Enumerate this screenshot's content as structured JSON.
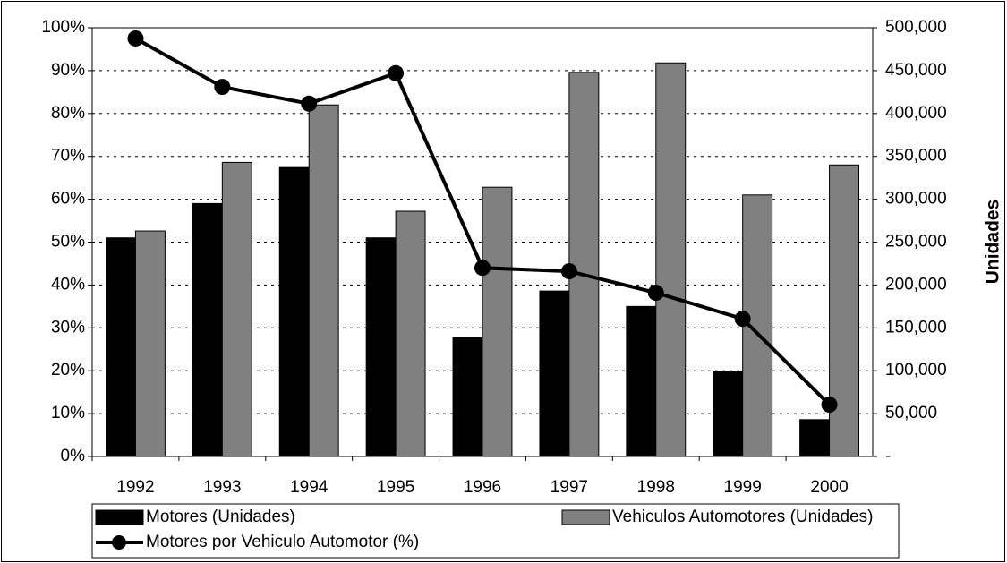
{
  "chart_data": {
    "type": "bar",
    "categories": [
      "1992",
      "1993",
      "1994",
      "1995",
      "1996",
      "1997",
      "1998",
      "1999",
      "2000"
    ],
    "y2_label": "Unidades",
    "ylim": [
      0,
      100
    ],
    "yticks": [
      {
        "value": 0,
        "label": "0%"
      },
      {
        "value": 10,
        "label": "10%"
      },
      {
        "value": 20,
        "label": "20%"
      },
      {
        "value": 30,
        "label": "30%"
      },
      {
        "value": 40,
        "label": "40%"
      },
      {
        "value": 50,
        "label": "50%"
      },
      {
        "value": 60,
        "label": "60%"
      },
      {
        "value": 70,
        "label": "70%"
      },
      {
        "value": 80,
        "label": "80%"
      },
      {
        "value": 90,
        "label": "90%"
      },
      {
        "value": 100,
        "label": "100%"
      }
    ],
    "y2lim": [
      0,
      500000
    ],
    "y2ticks": [
      {
        "value": 0,
        "label": "-"
      },
      {
        "value": 50000,
        "label": "50,000"
      },
      {
        "value": 100000,
        "label": "100,000"
      },
      {
        "value": 150000,
        "label": "150,000"
      },
      {
        "value": 200000,
        "label": "200,000"
      },
      {
        "value": 250000,
        "label": "250,000"
      },
      {
        "value": 300000,
        "label": "300,000"
      },
      {
        "value": 350000,
        "label": "350,000"
      },
      {
        "value": 400000,
        "label": "400,000"
      },
      {
        "value": 450000,
        "label": "450,000"
      },
      {
        "value": 500000,
        "label": "500,000"
      }
    ],
    "grid": true,
    "legend": "bottom",
    "series": [
      {
        "name": "Motores (Unidades)",
        "color": "#000000",
        "axis": "y2",
        "values": [
          255000,
          295000,
          337000,
          255000,
          139000,
          193000,
          175000,
          99000,
          43000
        ]
      },
      {
        "name": "Vehiculos Automotores (Unidades)",
        "color": "#808080",
        "axis": "y2",
        "values": [
          263000,
          343000,
          410000,
          286000,
          314000,
          448000,
          459000,
          305000,
          340000
        ]
      },
      {
        "name": "Motores por Vehiculo Automotor (%)",
        "color": "#000000",
        "type": "line",
        "values": [
          97.5,
          86.2,
          82.3,
          89.4,
          44.0,
          43.2,
          38.2,
          32.1,
          12.1
        ]
      }
    ]
  }
}
